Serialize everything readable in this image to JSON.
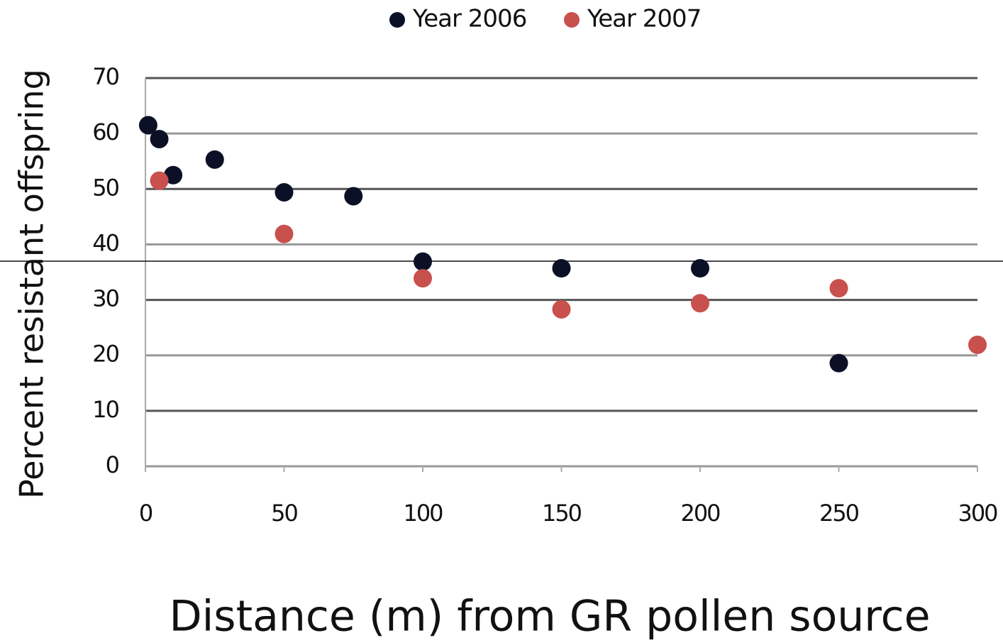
{
  "chart_data": {
    "type": "scatter",
    "x_label": "Distance (m) from GR pollen source",
    "y_label": "Percent resistant offspring",
    "xlim": [
      0,
      300
    ],
    "xticks": [
      0,
      50,
      100,
      150,
      200,
      250,
      300
    ],
    "ylim": [
      0,
      70
    ],
    "yticks": [
      0,
      10,
      20,
      30,
      40,
      50,
      60,
      70
    ],
    "grid": true,
    "legend": "top",
    "series": [
      {
        "name": "Year 2006",
        "color": "#0b1026",
        "x": [
          1,
          5,
          10,
          25,
          50,
          75,
          100,
          150,
          200,
          250
        ],
        "values": [
          61.5,
          59,
          52.5,
          55.3,
          49.4,
          48.7,
          36.9,
          35.7,
          35.7,
          18.6
        ]
      },
      {
        "name": "Year 2007",
        "color": "#c8504d",
        "x": [
          5,
          50,
          100,
          150,
          200,
          250,
          300
        ],
        "values": [
          51.5,
          41.9,
          33.9,
          28.3,
          29.4,
          32.1,
          21.9
        ]
      }
    ]
  }
}
